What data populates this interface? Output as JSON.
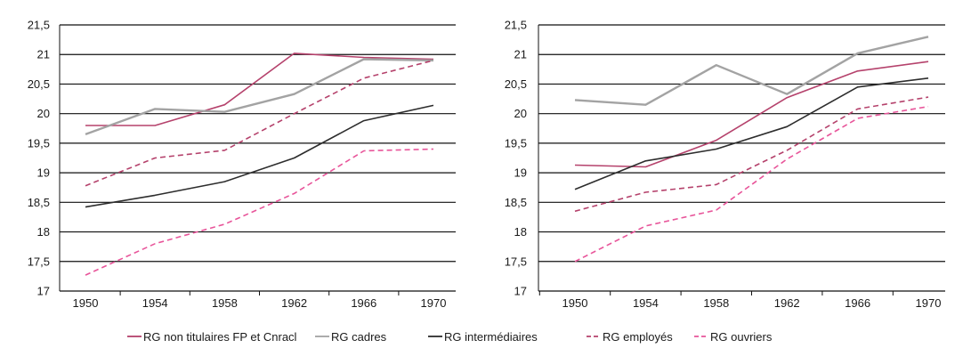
{
  "chart_data": [
    {
      "type": "line",
      "title": "",
      "xlabel": "",
      "ylabel": "",
      "categories": [
        "1950",
        "1954",
        "1958",
        "1962",
        "1966",
        "1970"
      ],
      "y_ticks": [
        "17",
        "17,5",
        "18",
        "18,5",
        "19",
        "19,5",
        "20",
        "20,5",
        "21",
        "21,5"
      ],
      "ylim": [
        17,
        21.5
      ],
      "grid": "horizontal",
      "series": [
        {
          "name": "RG non titulaires FP et Cnracl",
          "values": [
            19.8,
            19.8,
            20.15,
            21.02,
            20.95,
            20.92
          ]
        },
        {
          "name": "RG cadres",
          "values": [
            19.65,
            20.08,
            20.03,
            20.33,
            20.92,
            20.9
          ]
        },
        {
          "name": "RG intermédiaires",
          "values": [
            18.42,
            18.62,
            18.85,
            19.25,
            19.88,
            20.14
          ]
        },
        {
          "name": "RG employés",
          "values": [
            18.78,
            19.25,
            19.38,
            20.0,
            20.6,
            20.9
          ]
        },
        {
          "name": "RG ouvriers",
          "values": [
            17.27,
            17.8,
            18.13,
            18.65,
            19.37,
            19.4
          ]
        }
      ]
    },
    {
      "type": "line",
      "title": "",
      "xlabel": "",
      "ylabel": "",
      "categories": [
        "1950",
        "1954",
        "1958",
        "1962",
        "1966",
        "1970"
      ],
      "y_ticks": [
        "17",
        "17,5",
        "18",
        "18,5",
        "19",
        "19,5",
        "20",
        "20,5",
        "21",
        "21,5"
      ],
      "ylim": [
        17,
        21.5
      ],
      "grid": "horizontal",
      "series": [
        {
          "name": "RG non titulaires FP et Cnracl",
          "values": [
            19.13,
            19.1,
            19.55,
            20.27,
            20.72,
            20.88
          ]
        },
        {
          "name": "RG cadres",
          "values": [
            20.23,
            20.15,
            20.82,
            20.33,
            21.02,
            21.3
          ]
        },
        {
          "name": "RG intermédiaires",
          "values": [
            18.72,
            19.2,
            19.4,
            19.78,
            20.45,
            20.6
          ]
        },
        {
          "name": "RG employés",
          "values": [
            18.35,
            18.67,
            18.8,
            19.38,
            20.08,
            20.28
          ]
        },
        {
          "name": "RG ouvriers",
          "values": [
            17.5,
            18.1,
            18.37,
            19.23,
            19.92,
            20.12
          ]
        }
      ]
    }
  ],
  "legend": [
    {
      "label": "RG non titulaires FP et Cnracl",
      "color": "#b5426c",
      "dash": "solid"
    },
    {
      "label": "RG cadres",
      "color": "#a3a3a3",
      "dash": "solid"
    },
    {
      "label": "RG intermédiaires",
      "color": "#2d2d2d",
      "dash": "solid"
    },
    {
      "label": "RG employés",
      "color": "#b5426c",
      "dash": "dashed"
    },
    {
      "label": "RG ouvriers",
      "color": "#e8559a",
      "dash": "dashed"
    }
  ],
  "series_styles": [
    {
      "color": "#b5426c",
      "dash": "solid"
    },
    {
      "color": "#a3a3a3",
      "dash": "solid"
    },
    {
      "color": "#2d2d2d",
      "dash": "solid"
    },
    {
      "color": "#b5426c",
      "dash": "dashed"
    },
    {
      "color": "#e8559a",
      "dash": "dashed"
    }
  ]
}
